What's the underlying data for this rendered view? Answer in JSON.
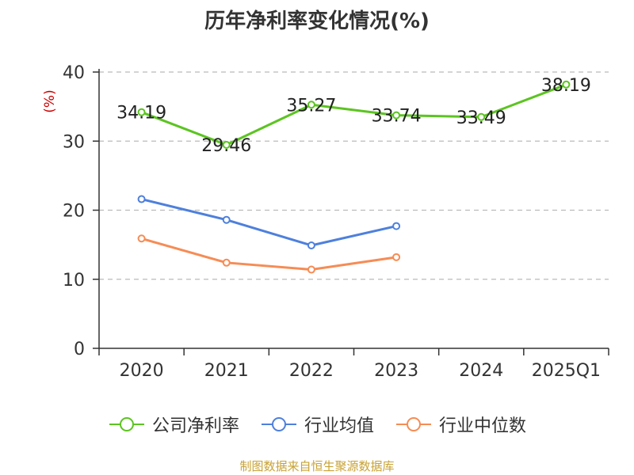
{
  "title": "历年净利率变化情况(%)",
  "source": "制图数据来自恒生聚源数据库",
  "chart_data": {
    "type": "line",
    "title": "历年净利率变化情况(%)",
    "ylabel": "(%)",
    "ylim": [
      0,
      40
    ],
    "yticks": [
      0,
      10,
      20,
      30,
      40
    ],
    "categories": [
      "2020",
      "2021",
      "2022",
      "2023",
      "2024",
      "2025Q1"
    ],
    "grid": true,
    "legend_position": "bottom",
    "series": [
      {
        "name": "公司净利率",
        "color": "#5cc421",
        "values": [
          34.19,
          29.46,
          35.27,
          33.74,
          33.49,
          38.19
        ],
        "labels": [
          "34.19",
          "29.46",
          "35.27",
          "33.74",
          "33.49",
          "38.19"
        ]
      },
      {
        "name": "行业均值",
        "color": "#4e80dc",
        "values": [
          21.6,
          18.6,
          14.9,
          17.7,
          null,
          null
        ]
      },
      {
        "name": "行业中位数",
        "color": "#f68c55",
        "values": [
          15.9,
          12.4,
          11.4,
          13.2,
          null,
          null
        ]
      }
    ]
  }
}
